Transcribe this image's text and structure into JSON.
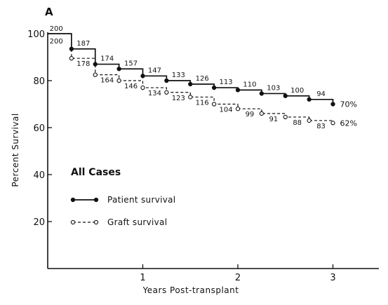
{
  "chart_data": {
    "type": "line",
    "panel_label": "A",
    "xlabel": "Years Post-transplant",
    "ylabel": "Percent Survival",
    "xlim": [
      0,
      3.25
    ],
    "ylim": [
      0,
      100
    ],
    "x_ticks": [
      1,
      2,
      3
    ],
    "y_ticks": [
      20,
      40,
      60,
      80,
      100
    ],
    "grid": false,
    "legend": {
      "title": "All Cases",
      "position": "middle-left",
      "entries": [
        "Patient survival",
        "Graft survival"
      ]
    },
    "series": [
      {
        "name": "Patient survival",
        "style": "solid",
        "marker": "filled-circle",
        "x": [
          0,
          0.25,
          0.5,
          0.75,
          1.0,
          1.25,
          1.5,
          1.75,
          2.0,
          2.25,
          2.5,
          2.75,
          3.0
        ],
        "y": [
          100,
          93.5,
          87,
          85,
          82,
          80,
          78.5,
          77,
          76,
          74.5,
          73.5,
          72,
          70
        ],
        "at_risk": [
          "200",
          "187",
          "174",
          "157",
          "147",
          "133",
          "126",
          "113",
          "110",
          "103",
          "100",
          "94",
          ""
        ],
        "end_label": "70%"
      },
      {
        "name": "Graft survival",
        "style": "dashed",
        "marker": "open-circle",
        "x": [
          0,
          0.25,
          0.5,
          0.75,
          1.0,
          1.25,
          1.5,
          1.75,
          2.0,
          2.25,
          2.5,
          2.75,
          3.0
        ],
        "y": [
          100,
          89.5,
          82.5,
          80,
          77,
          75,
          73,
          70,
          68,
          66,
          64.5,
          63,
          62
        ],
        "at_risk": [
          "200",
          "178",
          "164",
          "146",
          "134",
          "123",
          "116",
          "104",
          "99",
          "91",
          "88",
          "83",
          ""
        ],
        "end_label": "62%"
      }
    ]
  }
}
